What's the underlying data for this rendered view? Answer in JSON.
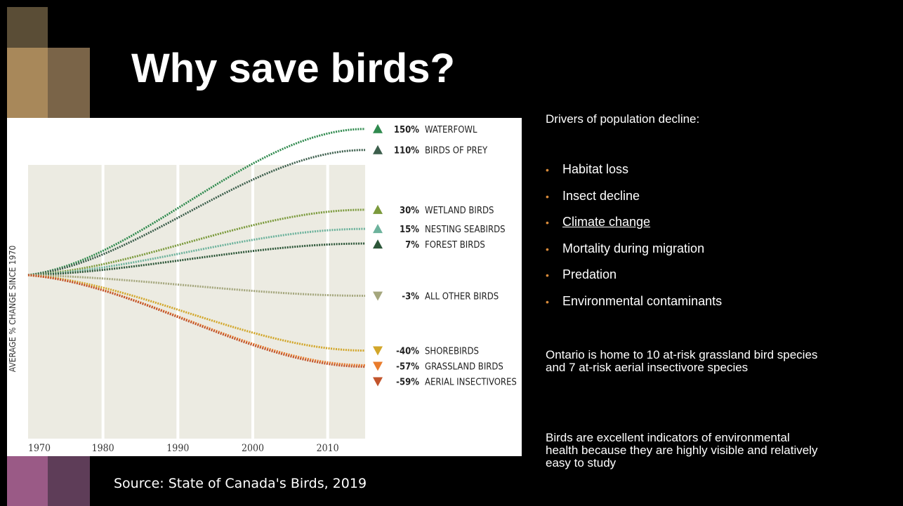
{
  "title": "Why save birds?",
  "chart_data": {
    "type": "line",
    "y_label": "AVERAGE % CHANGE SINCE 1970",
    "xlim": [
      1970,
      2015
    ],
    "xticks": [
      1970,
      1980,
      1990,
      2000,
      2010
    ],
    "grid": true,
    "series": [
      {
        "name": "WATERFOWL",
        "color": "#2f8a4e",
        "value": 150,
        "value_label": "150%"
      },
      {
        "name": "BIRDS OF PREY",
        "color": "#3c5e4c",
        "value": 110,
        "value_label": "110%"
      },
      {
        "name": "WETLAND BIRDS",
        "color": "#7b9a3c",
        "value": 30,
        "value_label": "30%"
      },
      {
        "name": "NESTING SEABIRDS",
        "color": "#6cb29c",
        "value": 15,
        "value_label": "15%"
      },
      {
        "name": "FOREST BIRDS",
        "color": "#2c5638",
        "value": 7,
        "value_label": "7%"
      },
      {
        "name": "ALL OTHER BIRDS",
        "color": "#a4a67c",
        "value": -3,
        "value_label": "-3%"
      },
      {
        "name": "SHOREBIRDS",
        "color": "#d2a629",
        "value": -40,
        "value_label": "-40%"
      },
      {
        "name": "GRASSLAND BIRDS",
        "color": "#e97c2c",
        "value": -57,
        "value_label": "-57%"
      },
      {
        "name": "AERIAL INSECTIVORES",
        "color": "#c2542b",
        "value": -59,
        "value_label": "-59%"
      }
    ]
  },
  "sidebar": {
    "heading": "Drivers of population decline:",
    "bullets": [
      "Habitat loss",
      "Insect decline",
      "Climate change",
      "Mortality during migration",
      "Predation",
      "Environmental contaminants"
    ],
    "paragraphs": [
      "Ontario is home to 10 at-risk grassland bird species and 7 at-risk aerial insectivore species",
      "Birds are excellent indicators of environmental health because they are highly visible and relatively easy to study"
    ]
  },
  "source": "Source: State of Canada's Birds, 2019"
}
